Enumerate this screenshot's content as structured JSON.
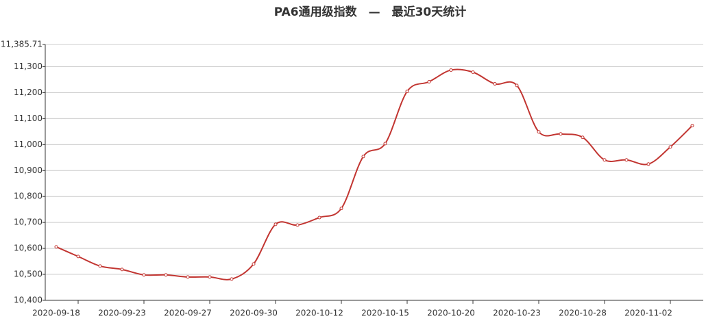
{
  "chart_data": {
    "type": "line",
    "title": "PA6通用级指数　—　最近30天统计",
    "categories": [
      "2020-09-18",
      null,
      null,
      "2020-09-23",
      null,
      null,
      "2020-09-27",
      null,
      null,
      "2020-09-30",
      null,
      null,
      "2020-10-12",
      null,
      null,
      "2020-10-15",
      null,
      null,
      "2020-10-20",
      null,
      null,
      "2020-10-23",
      null,
      null,
      "2020-10-28",
      null,
      null,
      "2020-11-02",
      null,
      null
    ],
    "values": [
      10606,
      10569,
      10532,
      10519,
      10498,
      10498,
      10490,
      10490,
      10482,
      10540,
      10693,
      10690,
      10719,
      10754,
      10954,
      11004,
      11205,
      11242,
      11287,
      11279,
      11234,
      11228,
      11049,
      11041,
      11028,
      10941,
      10941,
      10925,
      10991,
      11073
    ],
    "color": "#c23531",
    "ylim": [
      10400,
      11385.71
    ],
    "yticks": [
      {
        "value": 10400,
        "label": "10,400"
      },
      {
        "value": 10500,
        "label": "10,500"
      },
      {
        "value": 10600,
        "label": "10,600"
      },
      {
        "value": 10700,
        "label": "10,700"
      },
      {
        "value": 10800,
        "label": "10,800"
      },
      {
        "value": 10900,
        "label": "10,900"
      },
      {
        "value": 11000,
        "label": "11,000"
      },
      {
        "value": 11100,
        "label": "11,100"
      },
      {
        "value": 11200,
        "label": "11,200"
      },
      {
        "value": 11300,
        "label": "11,300"
      },
      {
        "value": 11385.71,
        "label": "11,385.71"
      }
    ],
    "grid": true
  }
}
